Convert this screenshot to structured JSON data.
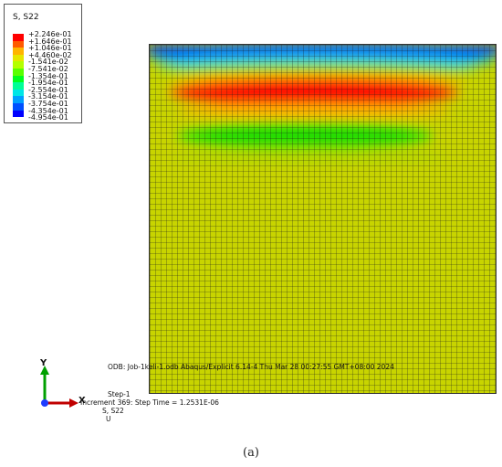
{
  "legend": {
    "title": "S, S22",
    "entries": [
      {
        "label": "+2.246e-01",
        "color": "#ff0000"
      },
      {
        "label": "+1.646e-01",
        "color": "#ff5a00"
      },
      {
        "label": "+1.046e-01",
        "color": "#ffb400"
      },
      {
        "label": "+4.460e-02",
        "color": "#e6e600"
      },
      {
        "label": "-1.541e-02",
        "color": "#b4ff00"
      },
      {
        "label": "-7.541e-02",
        "color": "#5aff00"
      },
      {
        "label": "-1.354e-01",
        "color": "#00ff1e"
      },
      {
        "label": "-1.954e-01",
        "color": "#00ff96"
      },
      {
        "label": "-2.554e-01",
        "color": "#00e6e6"
      },
      {
        "label": "-3.154e-01",
        "color": "#00a0ff"
      },
      {
        "label": "-3.754e-01",
        "color": "#0050ff"
      },
      {
        "label": "-4.354e-01",
        "color": "#0000ff"
      },
      {
        "label": "-4.954e-01",
        "color": "#0000c8"
      }
    ]
  },
  "info": {
    "odb_line": "ODB: Job-1keli-1.odb    Abaqus/Explicit 6.14-4    Thu Mar 28 00:27:55 GMT+08:00 2024",
    "step_line": "Step-1",
    "increment_line": "Increment    369: Step Time =   1.2531E-06",
    "variable_line": "S, S22",
    "deformed_line": "U"
  },
  "triad": {
    "x_label": "X",
    "y_label": "Y"
  },
  "caption": "(a)",
  "colors": {
    "field_base": "#c8d400",
    "mesh_line": "#1a1a1a"
  }
}
